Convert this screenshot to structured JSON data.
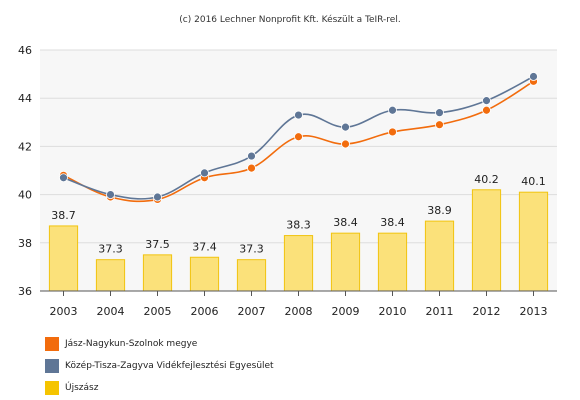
{
  "credit": "(c) 2016 Lechner Nonprofit Kft. Készült a TeIR-rel.",
  "chart_data": {
    "type": "bar+line",
    "categories": [
      "2003",
      "2004",
      "2005",
      "2006",
      "2007",
      "2008",
      "2009",
      "2010",
      "2011",
      "2012",
      "2013"
    ],
    "ylim": [
      36,
      46
    ],
    "yticks": [
      36,
      38,
      40,
      42,
      44,
      46
    ],
    "grid": true,
    "legend_position": "bottom-left",
    "series": [
      {
        "name": "Jász-Nagykun-Szolnok megye",
        "type": "line",
        "color": "#f26c0d",
        "values": [
          40.8,
          39.9,
          39.8,
          40.7,
          41.1,
          42.4,
          42.1,
          42.6,
          42.9,
          43.5,
          44.7
        ]
      },
      {
        "name": "Közép-Tisza-Zagyva Vidékfejlesztési Egyesület",
        "type": "line",
        "color": "#5f7696",
        "values": [
          40.7,
          40.0,
          39.9,
          40.9,
          41.6,
          43.3,
          42.8,
          43.5,
          43.4,
          43.9,
          44.9
        ]
      },
      {
        "name": "Újszász",
        "type": "bar",
        "color": "#fbe17a",
        "edge_color": "#f1c40f",
        "values": [
          38.7,
          37.3,
          37.5,
          37.4,
          37.3,
          38.3,
          38.4,
          38.4,
          38.9,
          40.2,
          40.1
        ],
        "labels": [
          "38.7",
          "37.3",
          "37.5",
          "37.4",
          "37.3",
          "38.3",
          "38.4",
          "38.4",
          "38.9",
          "40.2",
          "40.1"
        ]
      }
    ]
  }
}
